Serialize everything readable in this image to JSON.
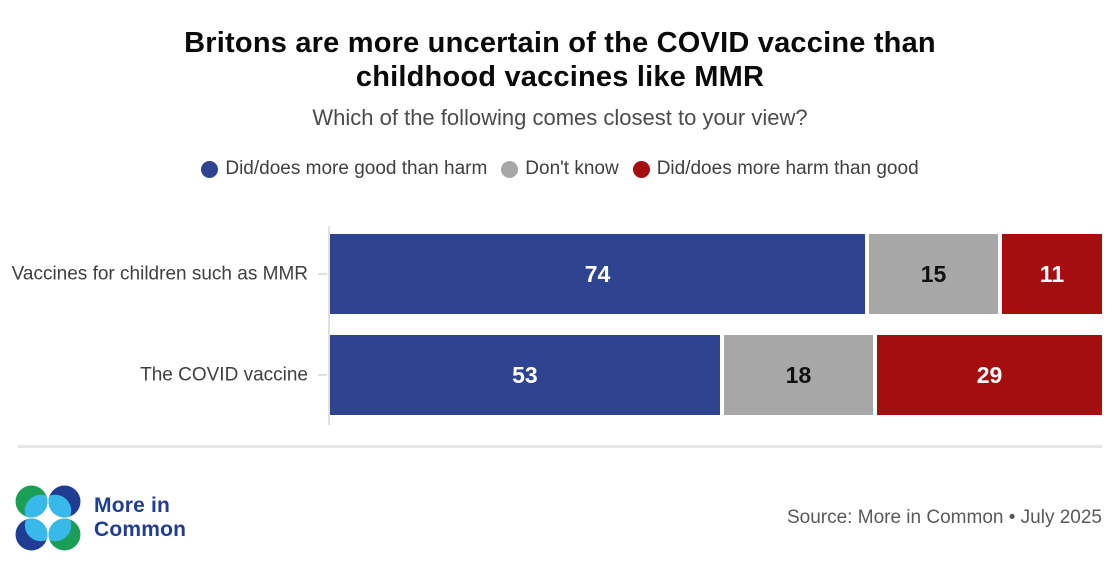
{
  "title_line1": "Britons are more uncertain of the COVID vaccine than",
  "title_line2": "childhood vaccines like MMR",
  "subtitle": "Which of the following comes closest to your view?",
  "chart_data": {
    "type": "bar",
    "orientation": "horizontal",
    "stacked": true,
    "grid": false,
    "legend_position": "top",
    "xlim": [
      0,
      100
    ],
    "categories": [
      "Vaccines for children such as MMR",
      "The COVID vaccine"
    ],
    "series": [
      {
        "name": "Did/does more good than harm",
        "color": "#2F4393",
        "label_color": "#ffffff",
        "values": [
          74,
          53
        ]
      },
      {
        "name": "Don't know",
        "color": "#A7A7A7",
        "label_color": "#111111",
        "values": [
          15,
          18
        ]
      },
      {
        "name": "Did/does more harm than good",
        "color": "#A40E0E",
        "label_color": "#ffffff",
        "values": [
          11,
          29
        ]
      }
    ]
  },
  "footer": {
    "logo_line1": "More in",
    "logo_line2": "Common",
    "source": "Source: More in Common • July 2025"
  },
  "colors": {
    "accent_blue": "#2F4393",
    "neutral_gray": "#A7A7A7",
    "accent_red": "#A40E0E",
    "logo_blue": "#203D94",
    "logo_cyan": "#39B9E9",
    "logo_green": "#1B9E55"
  }
}
